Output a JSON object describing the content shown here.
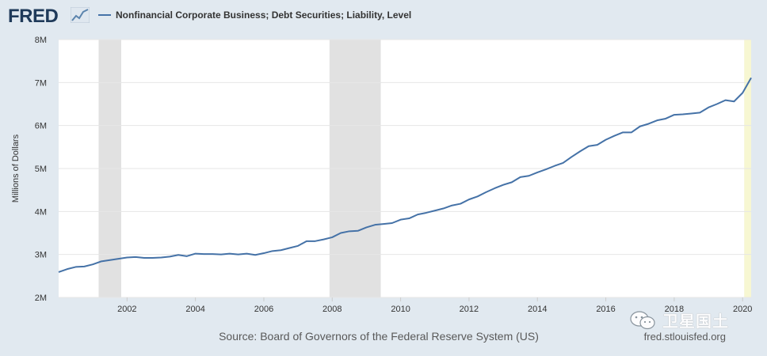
{
  "header": {
    "logo_text": "FRED",
    "series_title": "Nonfinancial Corporate Business; Debt Securities; Liability, Level",
    "series_color": "#4572a7"
  },
  "footer": {
    "source": "Source: Board of Governors of the Federal Reserve System (US)",
    "site": "fred.stlouisfed.org"
  },
  "watermark": {
    "text": "卫星国土"
  },
  "chart_data": {
    "type": "line",
    "ylabel": "Millions of Dollars",
    "ylim": [
      2000000,
      8000000
    ],
    "xlim": [
      2000.0,
      2020.25
    ],
    "y_ticks": [
      {
        "value": 2000000,
        "label": "2M"
      },
      {
        "value": 3000000,
        "label": "3M"
      },
      {
        "value": 4000000,
        "label": "4M"
      },
      {
        "value": 5000000,
        "label": "5M"
      },
      {
        "value": 6000000,
        "label": "6M"
      },
      {
        "value": 7000000,
        "label": "7M"
      },
      {
        "value": 8000000,
        "label": "8M"
      }
    ],
    "x_ticks": [
      {
        "value": 2002,
        "label": "2002"
      },
      {
        "value": 2004,
        "label": "2004"
      },
      {
        "value": 2006,
        "label": "2006"
      },
      {
        "value": 2008,
        "label": "2008"
      },
      {
        "value": 2010,
        "label": "2010"
      },
      {
        "value": 2012,
        "label": "2012"
      },
      {
        "value": 2014,
        "label": "2014"
      },
      {
        "value": 2016,
        "label": "2016"
      },
      {
        "value": 2018,
        "label": "2018"
      },
      {
        "value": 2020,
        "label": "2020"
      }
    ],
    "recessions": [
      {
        "start": 2001.17,
        "end": 2001.83
      },
      {
        "start": 2007.92,
        "end": 2009.42
      }
    ],
    "recessions_color": "#e1e1e1",
    "current_period": {
      "start": 2020.0,
      "end": 2020.25
    },
    "current_period_color": "#f7f7d2",
    "grid": true,
    "legend": "top-left",
    "series": [
      {
        "name": "Nonfinancial Corporate Business; Debt Securities; Liability, Level",
        "color": "#4572a7",
        "x": [
          2000.0,
          2000.25,
          2000.5,
          2000.75,
          2001.0,
          2001.25,
          2001.5,
          2001.75,
          2002.0,
          2002.25,
          2002.5,
          2002.75,
          2003.0,
          2003.25,
          2003.5,
          2003.75,
          2004.0,
          2004.25,
          2004.5,
          2004.75,
          2005.0,
          2005.25,
          2005.5,
          2005.75,
          2006.0,
          2006.25,
          2006.5,
          2006.75,
          2007.0,
          2007.25,
          2007.5,
          2007.75,
          2008.0,
          2008.25,
          2008.5,
          2008.75,
          2009.0,
          2009.25,
          2009.5,
          2009.75,
          2010.0,
          2010.25,
          2010.5,
          2010.75,
          2011.0,
          2011.25,
          2011.5,
          2011.75,
          2012.0,
          2012.25,
          2012.5,
          2012.75,
          2013.0,
          2013.25,
          2013.5,
          2013.75,
          2014.0,
          2014.25,
          2014.5,
          2014.75,
          2015.0,
          2015.25,
          2015.5,
          2015.75,
          2016.0,
          2016.25,
          2016.5,
          2016.75,
          2017.0,
          2017.25,
          2017.5,
          2017.75,
          2018.0,
          2018.25,
          2018.5,
          2018.75,
          2019.0,
          2019.25,
          2019.5,
          2019.75,
          2020.0,
          2020.25
        ],
        "y": [
          2590000,
          2660000,
          2710000,
          2720000,
          2770000,
          2840000,
          2870000,
          2900000,
          2930000,
          2940000,
          2920000,
          2920000,
          2930000,
          2950000,
          2990000,
          2960000,
          3020000,
          3010000,
          3010000,
          3000000,
          3020000,
          3000000,
          3020000,
          2990000,
          3030000,
          3080000,
          3100000,
          3150000,
          3200000,
          3310000,
          3310000,
          3350000,
          3400000,
          3500000,
          3540000,
          3550000,
          3630000,
          3690000,
          3710000,
          3730000,
          3810000,
          3840000,
          3930000,
          3970000,
          4020000,
          4070000,
          4140000,
          4180000,
          4280000,
          4350000,
          4450000,
          4540000,
          4620000,
          4680000,
          4800000,
          4830000,
          4910000,
          4980000,
          5060000,
          5130000,
          5270000,
          5400000,
          5520000,
          5550000,
          5670000,
          5760000,
          5840000,
          5840000,
          5980000,
          6040000,
          6120000,
          6160000,
          6250000,
          6260000,
          6280000,
          6300000,
          6420000,
          6500000,
          6590000,
          6560000,
          6760000,
          7110000
        ]
      }
    ]
  }
}
